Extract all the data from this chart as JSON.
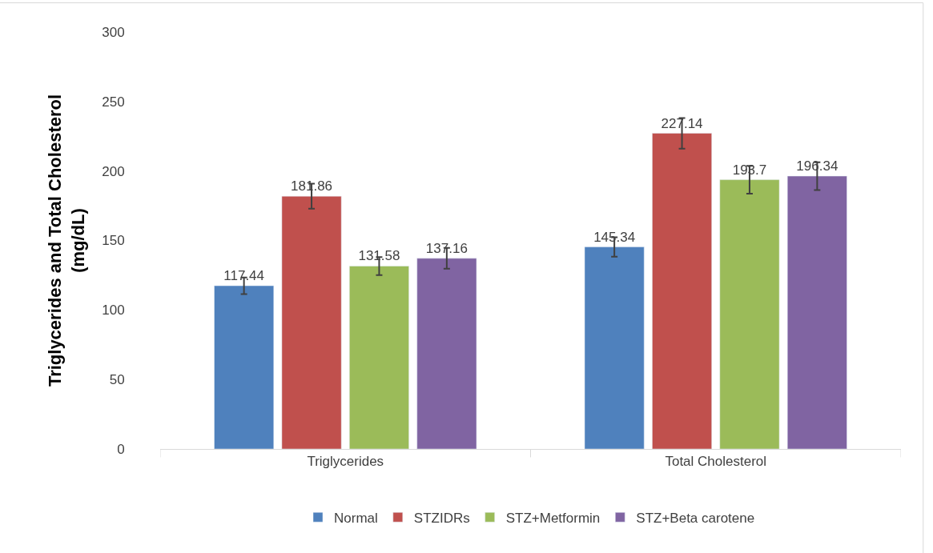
{
  "chart_data": {
    "type": "bar",
    "ylabel": "Triglycerides and Total Cholesterol\n(mg/dL)",
    "categories": [
      "Triglycerides",
      "Total Cholesterol"
    ],
    "series": [
      {
        "name": "Normal",
        "color": "#4f81bd",
        "values": [
          117.44,
          145.34
        ],
        "errors": [
          6,
          7
        ]
      },
      {
        "name": "STZIDRs",
        "color": "#c0504d",
        "values": [
          181.86,
          227.14
        ],
        "errors": [
          9,
          11
        ]
      },
      {
        "name": "STZ+Metformin",
        "color": "#9bbb59",
        "values": [
          131.58,
          193.7
        ],
        "errors": [
          6.5,
          10
        ]
      },
      {
        "name": "STZ+Beta carotene",
        "color": "#8064a2",
        "values": [
          137.16,
          196.34
        ],
        "errors": [
          7.5,
          10
        ]
      }
    ],
    "ylim": [
      0,
      300
    ],
    "yticks": [
      0,
      50,
      100,
      150,
      200,
      250,
      300
    ],
    "legend": "bottom",
    "data_labels": true
  }
}
